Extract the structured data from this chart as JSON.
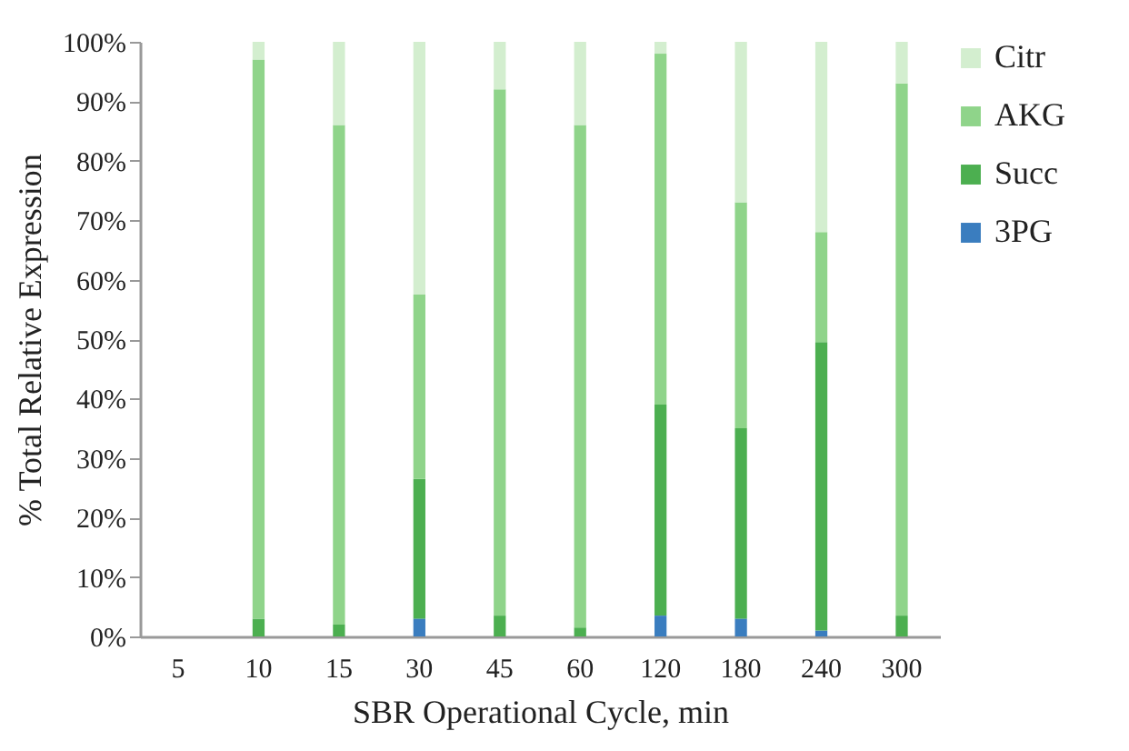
{
  "chart_data": {
    "type": "bar",
    "stacked": true,
    "xlabel": "SBR Operational Cycle, min",
    "ylabel": "% Total Relative Expression",
    "categories": [
      "5",
      "10",
      "15",
      "30",
      "45",
      "60",
      "120",
      "180",
      "240",
      "300"
    ],
    "series": [
      {
        "name": "3PG",
        "color": "#3a7dbf",
        "values": [
          0,
          0,
          0,
          3,
          0,
          0,
          3.5,
          3,
          1,
          0
        ]
      },
      {
        "name": "Succ",
        "color": "#4caf50",
        "values": [
          0,
          3,
          2,
          23.5,
          3.5,
          1.5,
          35.5,
          32,
          48.5,
          3.5
        ]
      },
      {
        "name": "AKG",
        "color": "#8fd48a",
        "values": [
          0,
          94,
          84,
          31,
          88.5,
          84.5,
          59,
          38,
          18.5,
          89.5
        ]
      },
      {
        "name": "Citr",
        "color": "#d3eecf",
        "values": [
          0,
          3,
          14,
          42.5,
          8,
          14,
          2,
          27,
          32,
          7
        ]
      }
    ],
    "ylim": [
      0,
      100
    ],
    "yticks": [
      {
        "value": 0,
        "label": "0%"
      },
      {
        "value": 10,
        "label": "10%"
      },
      {
        "value": 20,
        "label": "20%"
      },
      {
        "value": 30,
        "label": "30%"
      },
      {
        "value": 40,
        "label": "40%"
      },
      {
        "value": 50,
        "label": "50%"
      },
      {
        "value": 60,
        "label": "60%"
      },
      {
        "value": 70,
        "label": "70%"
      },
      {
        "value": 80,
        "label": "80%"
      },
      {
        "value": 90,
        "label": "90%"
      },
      {
        "value": 100,
        "label": "100%"
      }
    ],
    "grid": false,
    "legend": "right"
  }
}
